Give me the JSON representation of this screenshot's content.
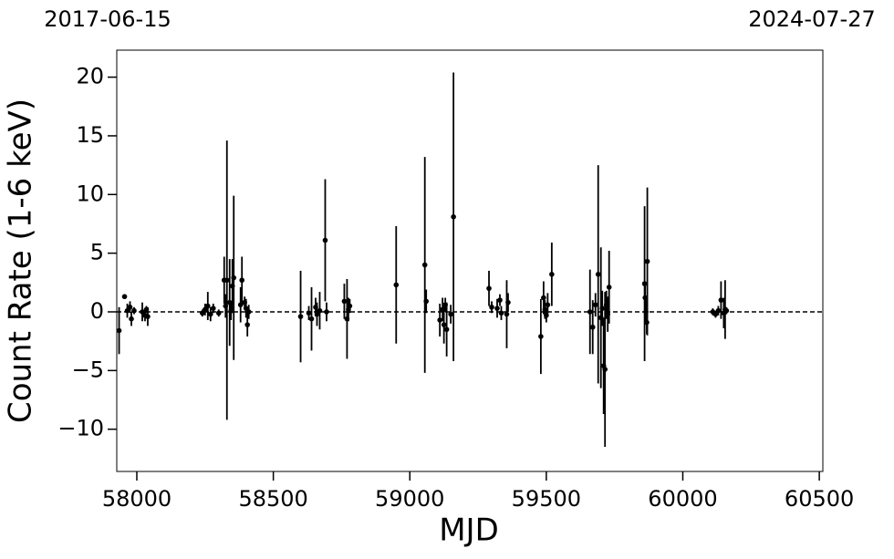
{
  "chart_data": {
    "type": "errorbar",
    "xlabel": "MJD",
    "ylabel": "Count Rate (1-6 keV)",
    "top_labels": [
      "2017-06-15",
      "2024-07-27"
    ],
    "xlim": [
      57926.5,
      60513
    ],
    "ylim": [
      -13.6,
      22.3
    ],
    "xticks": [
      58000,
      58500,
      59000,
      59500,
      60000,
      60500
    ],
    "yticks": [
      {
        "value": -10,
        "label": "−10"
      },
      {
        "value": -5,
        "label": "−5"
      },
      0,
      5,
      10,
      15,
      20
    ],
    "grid": false,
    "hline": 0,
    "color": "#000000",
    "x": [
      57935,
      57955,
      57965,
      57975,
      57980,
      57990,
      58020,
      58030,
      58035,
      58040,
      58240,
      58250,
      58260,
      58270,
      58280,
      58300,
      58320,
      58325,
      58330,
      58340,
      58345,
      58350,
      58355,
      58380,
      58385,
      58395,
      58400,
      58405,
      58410,
      58600,
      58630,
      58640,
      58655,
      58660,
      58670,
      58690,
      58695,
      58760,
      58770,
      58775,
      58780,
      58950,
      59055,
      59060,
      59110,
      59120,
      59125,
      59130,
      59135,
      59150,
      59160,
      59290,
      59300,
      59320,
      59330,
      59335,
      59355,
      59360,
      59480,
      59490,
      59495,
      59500,
      59505,
      59520,
      59660,
      59670,
      59680,
      59690,
      59700,
      59705,
      59710,
      59715,
      59720,
      59725,
      59730,
      59860,
      59862,
      59865,
      59868,
      59870,
      60110,
      60120,
      60130,
      60140,
      60150,
      60155,
      60160
    ],
    "values": [
      -1.6,
      1.3,
      0.1,
      0.4,
      -0.6,
      0.1,
      0.0,
      -0.3,
      0.2,
      -0.4,
      -0.1,
      0.2,
      0.5,
      -0.2,
      0.3,
      -0.1,
      2.7,
      0.5,
      2.7,
      0.8,
      0.1,
      2.2,
      2.9,
      0.6,
      2.7,
      0.8,
      0.3,
      -1.1,
      0.0,
      -0.4,
      -0.1,
      -0.6,
      0.4,
      -0.2,
      0.1,
      6.1,
      0.0,
      0.9,
      -0.6,
      0.2,
      0.5,
      2.3,
      4.0,
      0.9,
      -0.7,
      0.2,
      -1.1,
      0.6,
      -1.5,
      -0.2,
      8.1,
      2.0,
      0.4,
      0.3,
      1.0,
      -0.1,
      -0.2,
      0.8,
      -2.1,
      1.2,
      0.2,
      -0.3,
      0.6,
      3.2,
      0.0,
      -1.3,
      0.6,
      3.2,
      -0.5,
      0.3,
      -4.6,
      -4.9,
      0.6,
      -0.2,
      2.1,
      2.4,
      1.2,
      0.0,
      -0.9,
      4.3,
      0.0,
      -0.2,
      0.1,
      1.0,
      -0.1,
      0.2,
      0.1
    ],
    "errors": [
      2.0,
      0.2,
      0.6,
      0.5,
      0.6,
      0.3,
      0.8,
      0.5,
      0.3,
      0.8,
      0.3,
      0.5,
      1.2,
      0.6,
      0.4,
      0.3,
      2.0,
      1.0,
      11.9,
      3.7,
      0.8,
      2.3,
      7.0,
      1.5,
      2.0,
      0.5,
      0.8,
      1.0,
      0.6,
      3.9,
      0.6,
      2.7,
      0.8,
      1.0,
      1.6,
      5.2,
      0.8,
      1.5,
      3.4,
      1.0,
      0.6,
      5.0,
      9.2,
      1.0,
      1.4,
      1.0,
      1.6,
      0.6,
      2.3,
      0.8,
      12.3,
      1.5,
      0.5,
      0.8,
      0.5,
      0.6,
      2.9,
      0.8,
      3.2,
      1.4,
      0.8,
      0.6,
      1.0,
      2.7,
      3.6,
      2.3,
      1.0,
      9.3,
      6.0,
      1.5,
      4.1,
      6.6,
      1.2,
      1.5,
      3.1,
      6.6,
      1.0,
      1.0,
      1.0,
      6.3,
      0.3,
      0.3,
      0.4,
      1.6,
      1.3,
      2.5,
      0.3
    ]
  }
}
